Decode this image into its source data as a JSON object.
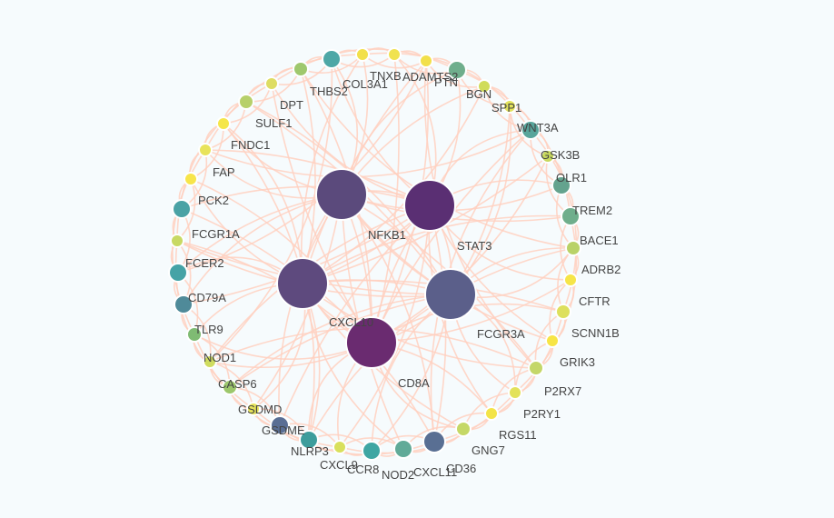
{
  "network": {
    "hub_nodes": [
      {
        "id": "NFKB1",
        "color": "#5b4a7c"
      },
      {
        "id": "STAT3",
        "color": "#5a2f73"
      },
      {
        "id": "CXCL10",
        "color": "#5e4a7e"
      },
      {
        "id": "CD8A",
        "color": "#6a2b70"
      },
      {
        "id": "FCGR3A",
        "color": "#5b5f8a"
      }
    ],
    "nodes": [
      {
        "id": "TNXB",
        "color": "#f2e04a"
      },
      {
        "id": "COL3A1",
        "color": "#4ea7a6"
      },
      {
        "id": "THBS2",
        "color": "#9fc86d"
      },
      {
        "id": "DPT",
        "color": "#dedd63"
      },
      {
        "id": "SULF1",
        "color": "#b7d06a"
      },
      {
        "id": "FNDC1",
        "color": "#f5e64a"
      },
      {
        "id": "FAP",
        "color": "#e8e35b"
      },
      {
        "id": "PCK2",
        "color": "#f7e54a"
      },
      {
        "id": "FCGR1A",
        "color": "#4aa2a5"
      },
      {
        "id": "FCER2",
        "color": "#c8d963"
      },
      {
        "id": "CD79A",
        "color": "#45a3a6"
      },
      {
        "id": "TLR9",
        "color": "#4f8a99"
      },
      {
        "id": "NOD1",
        "color": "#7fbb73"
      },
      {
        "id": "CASP6",
        "color": "#cfdc5f"
      },
      {
        "id": "GSDMD",
        "color": "#9cc76b"
      },
      {
        "id": "GSDME",
        "color": "#e6e35a"
      },
      {
        "id": "NLRP3",
        "color": "#5a6e94"
      },
      {
        "id": "CXCL9",
        "color": "#3d9d9c"
      },
      {
        "id": "CCR8",
        "color": "#d9e05c"
      },
      {
        "id": "NOD2",
        "color": "#3fa6a3"
      },
      {
        "id": "CXCL11",
        "color": "#61aa98"
      },
      {
        "id": "CD36",
        "color": "#596f93"
      },
      {
        "id": "GNG7",
        "color": "#c5d866"
      },
      {
        "id": "RGS11",
        "color": "#f3e448"
      },
      {
        "id": "P2RY1",
        "color": "#e3e25a"
      },
      {
        "id": "P2RX7",
        "color": "#c4d768"
      },
      {
        "id": "GRIK3",
        "color": "#f7e545"
      },
      {
        "id": "SCNN1B",
        "color": "#dde05d"
      },
      {
        "id": "CFTR",
        "color": "#f6e548"
      },
      {
        "id": "ADRB2",
        "color": "#b9d268"
      },
      {
        "id": "BACE1",
        "color": "#6fae8c"
      },
      {
        "id": "TREM2",
        "color": "#64a38e"
      },
      {
        "id": "OLR1",
        "color": "#c8d85e"
      },
      {
        "id": "GSK3B",
        "color": "#58a59b"
      },
      {
        "id": "WNT3A",
        "color": "#e2e25b"
      },
      {
        "id": "SPP1",
        "color": "#d0dc5a"
      },
      {
        "id": "BGN",
        "color": "#6fae8c"
      },
      {
        "id": "PTN",
        "color": "#f2e04a"
      },
      {
        "id": "ADAMTS2",
        "color": "#f0e250"
      }
    ],
    "edge_color": "#ffd0c0"
  }
}
